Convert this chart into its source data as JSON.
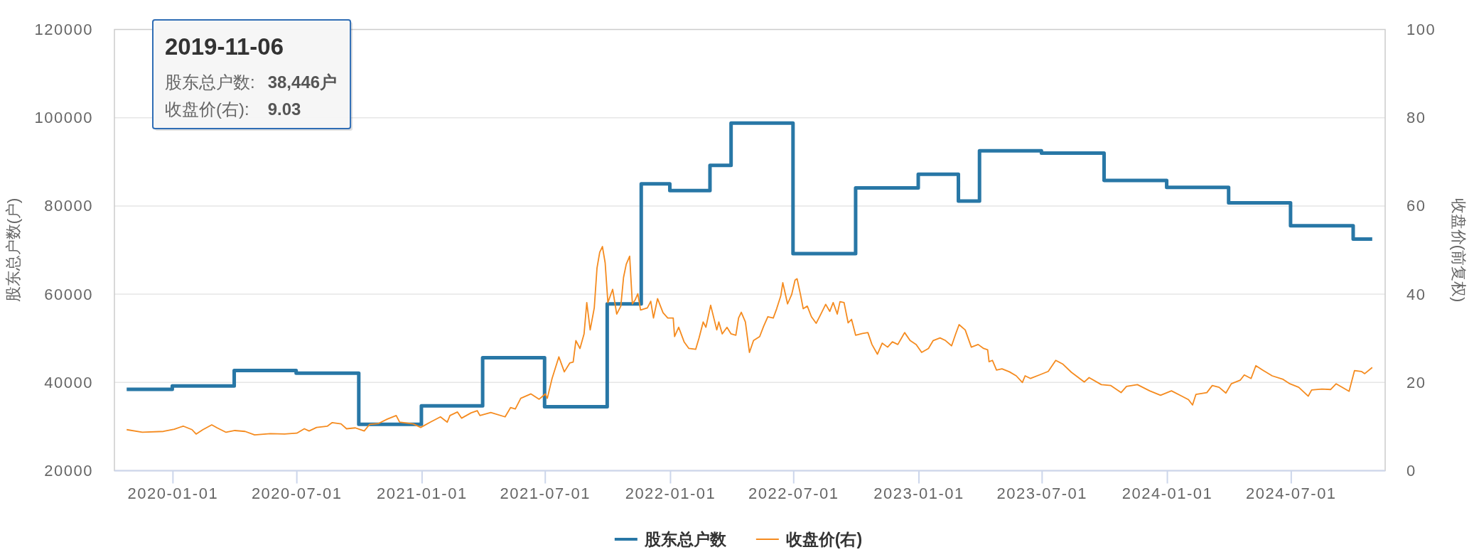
{
  "chart_data": {
    "type": "step",
    "ylabel": "股东总户数(户)",
    "y2label": "收盘价(前复权)",
    "xlim": [
      "2019-10-07",
      "2024-11-16"
    ],
    "xticks": [
      "2020-01-01",
      "2020-07-01",
      "2021-01-01",
      "2021-07-01",
      "2022-01-01",
      "2022-07-01",
      "2023-01-01",
      "2023-07-01",
      "2024-01-01",
      "2024-07-01"
    ],
    "ylim": [
      20000,
      120000
    ],
    "yticks": [
      20000,
      40000,
      60000,
      80000,
      100000,
      120000
    ],
    "y2lim": [
      0,
      100
    ],
    "y2ticks": [
      0,
      20,
      40,
      60,
      80,
      100
    ],
    "grid": "y",
    "legend": "bottom",
    "annotations": [
      "2019-11-06",
      "股东总户数:",
      "38,446户",
      "收盘价(右):",
      "9.03"
    ],
    "series": [
      {
        "name": "股东总户数",
        "color": "#2877a6",
        "x": [
          "2019-10-25",
          "2019-12-31",
          "2020-03-31",
          "2020-06-30",
          "2020-09-30",
          "2020-12-31",
          "2021-03-31",
          "2021-06-30",
          "2021-09-30",
          "2021-11-19",
          "2021-12-31",
          "2022-02-28",
          "2022-03-31",
          "2022-06-30",
          "2022-09-30",
          "2022-12-31",
          "2023-02-28",
          "2023-03-31",
          "2023-06-30",
          "2023-09-30",
          "2023-12-31",
          "2024-03-31",
          "2024-06-30",
          "2024-09-30",
          "2024-10-28"
        ],
        "values": [
          38446,
          39200,
          42700,
          42100,
          30500,
          34700,
          45600,
          34500,
          57800,
          85000,
          83500,
          89200,
          98800,
          69200,
          84100,
          87200,
          81100,
          92500,
          92000,
          85800,
          84200,
          80700,
          75500,
          72500,
          72500
        ]
      },
      {
        "name": "收盘价(右)",
        "type": "line",
        "axis": "y2",
        "color": "#f58b1f",
        "x": [
          "2019-10-25",
          "2019-11-17",
          "2019-12-18",
          "2020-01-03",
          "2020-01-16",
          "2020-01-29",
          "2020-02-04",
          "2020-02-14",
          "2020-02-27",
          "2020-03-06",
          "2020-03-19",
          "2020-04-01",
          "2020-04-16",
          "2020-04-30",
          "2020-05-23",
          "2020-06-13",
          "2020-07-01",
          "2020-07-12",
          "2020-07-19",
          "2020-07-30",
          "2020-08-15",
          "2020-08-22",
          "2020-09-04",
          "2020-09-12",
          "2020-09-25",
          "2020-10-08",
          "2020-10-16",
          "2020-10-29",
          "2020-11-11",
          "2020-11-24",
          "2020-11-29",
          "2020-12-19",
          "2020-12-30",
          "2021-01-13",
          "2021-01-28",
          "2021-02-07",
          "2021-02-11",
          "2021-02-22",
          "2021-02-28",
          "2021-03-14",
          "2021-03-23",
          "2021-03-27",
          "2021-04-12",
          "2021-05-03",
          "2021-05-11",
          "2021-05-18",
          "2021-05-26",
          "2021-06-10",
          "2021-06-22",
          "2021-07-01",
          "2021-07-04",
          "2021-07-11",
          "2021-07-21",
          "2021-07-29",
          "2021-08-06",
          "2021-08-11",
          "2021-08-15",
          "2021-08-21",
          "2021-08-27",
          "2021-08-31",
          "2021-09-05",
          "2021-09-11",
          "2021-09-15",
          "2021-09-19",
          "2021-09-23",
          "2021-09-27",
          "2021-10-01",
          "2021-10-08",
          "2021-10-14",
          "2021-10-20",
          "2021-10-24",
          "2021-10-28",
          "2021-11-02",
          "2021-11-06",
          "2021-11-10",
          "2021-11-14",
          "2021-11-18",
          "2021-11-28",
          "2021-12-03",
          "2021-12-07",
          "2021-12-13",
          "2021-12-21",
          "2021-12-28",
          "2022-01-05",
          "2022-01-07",
          "2022-01-13",
          "2022-01-21",
          "2022-01-28",
          "2022-02-07",
          "2022-02-12",
          "2022-02-18",
          "2022-02-22",
          "2022-03-01",
          "2022-03-10",
          "2022-03-13",
          "2022-03-18",
          "2022-03-25",
          "2022-03-31",
          "2022-04-07",
          "2022-04-11",
          "2022-04-15",
          "2022-04-21",
          "2022-04-27",
          "2022-05-03",
          "2022-05-12",
          "2022-05-18",
          "2022-05-24",
          "2022-06-01",
          "2022-06-06",
          "2022-06-12",
          "2022-06-15",
          "2022-06-22",
          "2022-06-28",
          "2022-07-03",
          "2022-07-06",
          "2022-07-11",
          "2022-07-15",
          "2022-07-21",
          "2022-07-27",
          "2022-08-03",
          "2022-08-09",
          "2022-08-17",
          "2022-08-23",
          "2022-08-28",
          "2022-09-03",
          "2022-09-07",
          "2022-09-13",
          "2022-09-19",
          "2022-09-24",
          "2022-09-30",
          "2022-10-10",
          "2022-10-18",
          "2022-10-24",
          "2022-11-01",
          "2022-11-08",
          "2022-11-16",
          "2022-11-23",
          "2022-12-01",
          "2022-12-11",
          "2022-12-19",
          "2022-12-28",
          "2023-01-05",
          "2023-01-15",
          "2023-01-22",
          "2023-02-01",
          "2023-02-09",
          "2023-02-18",
          "2023-02-24",
          "2023-03-01",
          "2023-03-10",
          "2023-03-19",
          "2023-03-29",
          "2023-04-06",
          "2023-04-12",
          "2023-04-14",
          "2023-04-19",
          "2023-04-25",
          "2023-05-03",
          "2023-05-14",
          "2023-05-24",
          "2023-06-02",
          "2023-06-06",
          "2023-06-14",
          "2023-06-27",
          "2023-07-10",
          "2023-07-21",
          "2023-07-31",
          "2023-08-13",
          "2023-09-01",
          "2023-09-08",
          "2023-09-26",
          "2023-10-10",
          "2023-10-25",
          "2023-11-02",
          "2023-11-18",
          "2023-12-06",
          "2023-12-22",
          "2024-01-07",
          "2024-01-22",
          "2024-02-01",
          "2024-02-07",
          "2024-02-12",
          "2024-02-28",
          "2024-03-07",
          "2024-03-17",
          "2024-03-27",
          "2024-04-04",
          "2024-04-17",
          "2024-04-23",
          "2024-05-03",
          "2024-05-10",
          "2024-05-21",
          "2024-06-03",
          "2024-06-19",
          "2024-06-29",
          "2024-07-12",
          "2024-07-26",
          "2024-07-31",
          "2024-08-15",
          "2024-08-28",
          "2024-09-05",
          "2024-09-24",
          "2024-10-02",
          "2024-10-12",
          "2024-10-17",
          "2024-10-28"
        ],
        "values": [
          9.3,
          8.7,
          8.9,
          9.4,
          10.1,
          9.3,
          8.3,
          9.3,
          10.4,
          9.7,
          8.7,
          9.1,
          8.9,
          8.1,
          8.4,
          8.3,
          8.5,
          9.5,
          9.0,
          9.8,
          10.1,
          10.9,
          10.6,
          9.5,
          9.7,
          9.0,
          10.5,
          10.7,
          11.7,
          12.5,
          11.0,
          10.6,
          9.8,
          11.0,
          12.2,
          11.0,
          12.5,
          13.3,
          11.9,
          13.1,
          13.6,
          12.5,
          13.2,
          12.2,
          14.3,
          14.0,
          16.4,
          17.4,
          16.2,
          17.4,
          16.4,
          20.9,
          25.8,
          22.4,
          24.4,
          24.6,
          29.5,
          27.7,
          31.0,
          38.1,
          31.9,
          36.9,
          45.9,
          49.5,
          50.8,
          47.1,
          38.1,
          41.1,
          35.5,
          37.3,
          43.8,
          46.8,
          48.6,
          37.8,
          38.7,
          40.1,
          36.4,
          36.9,
          38.4,
          34.6,
          39.0,
          35.8,
          34.6,
          34.6,
          30.4,
          32.5,
          29.2,
          27.7,
          27.5,
          30.1,
          33.7,
          32.5,
          37.5,
          31.9,
          33.7,
          31.0,
          32.5,
          31.0,
          30.7,
          34.6,
          35.9,
          33.7,
          26.8,
          29.5,
          30.4,
          32.8,
          34.9,
          34.6,
          36.7,
          39.6,
          42.6,
          37.8,
          39.9,
          43.2,
          43.5,
          39.9,
          36.7,
          37.3,
          34.9,
          33.4,
          35.2,
          37.7,
          36.1,
          38.1,
          35.5,
          38.3,
          38.1,
          33.5,
          34.3,
          30.7,
          31.1,
          31.3,
          28.6,
          26.4,
          28.9,
          28.0,
          29.2,
          28.6,
          31.3,
          29.5,
          28.6,
          26.8,
          27.7,
          29.5,
          30.1,
          29.5,
          28.3,
          31.0,
          33.1,
          31.9,
          28.0,
          28.6,
          27.7,
          27.4,
          24.7,
          25.0,
          22.8,
          23.1,
          22.4,
          21.5,
          20.0,
          21.5,
          20.9,
          21.7,
          22.5,
          25.0,
          24.2,
          22.3,
          20.1,
          21.1,
          19.5,
          19.3,
          17.7,
          19.1,
          19.5,
          18.1,
          17.1,
          18.1,
          16.9,
          16.1,
          14.9,
          17.3,
          17.7,
          19.3,
          18.9,
          17.6,
          19.7,
          20.5,
          21.7,
          20.9,
          23.8,
          22.7,
          21.5,
          20.7,
          19.7,
          18.9,
          16.9,
          18.3,
          18.5,
          18.4,
          19.7,
          18.0,
          22.7,
          22.5,
          22.0,
          23.4
        ]
      }
    ]
  }
}
